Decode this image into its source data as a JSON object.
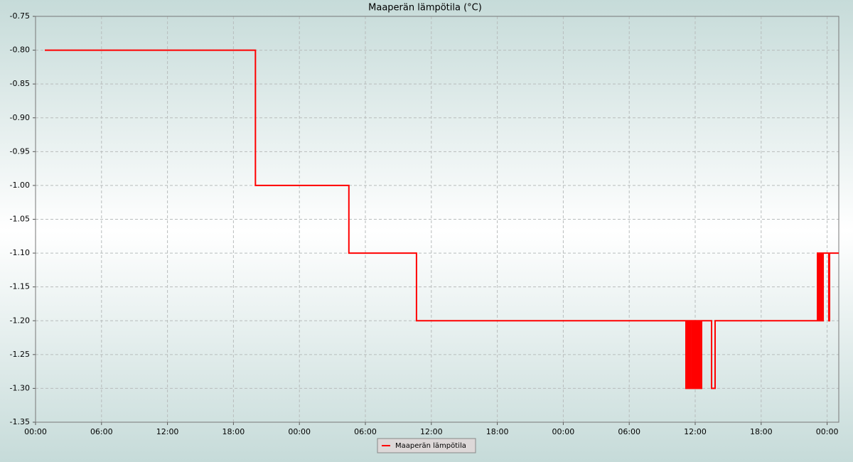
{
  "chart_data": {
    "type": "line",
    "title": "Maaperän lämpötila (°C)",
    "x": [
      0.84,
      20,
      20,
      28.5,
      28.5,
      34.65,
      34.65,
      59.16,
      59.16,
      59.29,
      59.29,
      59.42,
      59.42,
      59.55,
      59.55,
      59.68,
      59.68,
      59.81,
      59.81,
      59.94,
      59.94,
      60.07,
      60.07,
      60.19,
      60.19,
      60.32,
      60.32,
      60.45,
      60.45,
      60.58,
      60.58,
      61.49,
      61.49,
      61.81,
      61.81,
      71.12,
      71.12,
      71.25,
      71.25,
      71.38,
      71.38,
      71.51,
      71.51,
      71.64,
      71.64,
      72.15,
      72.15,
      72.22,
      72.22,
      73.06
    ],
    "series": [
      {
        "name": "Maaperän lämpötila",
        "color": "#ff0000",
        "values": [
          -0.8,
          -0.8,
          -1,
          -1,
          -1.1,
          -1.1,
          -1.2,
          -1.2,
          -1.3,
          -1.3,
          -1.2,
          -1.2,
          -1.3,
          -1.3,
          -1.2,
          -1.2,
          -1.3,
          -1.3,
          -1.2,
          -1.2,
          -1.3,
          -1.3,
          -1.2,
          -1.2,
          -1.3,
          -1.3,
          -1.2,
          -1.2,
          -1.3,
          -1.3,
          -1.2,
          -1.2,
          -1.3,
          -1.3,
          -1.2,
          -1.2,
          -1.1,
          -1.1,
          -1.2,
          -1.2,
          -1.1,
          -1.1,
          -1.2,
          -1.2,
          -1.1,
          -1.1,
          -1.2,
          -1.2,
          -1.1,
          -1.1
        ]
      }
    ],
    "xlim": [
      0,
      73.06
    ],
    "xticks": [
      {
        "value": 0,
        "label": "00:00"
      },
      {
        "value": 6,
        "label": "06:00"
      },
      {
        "value": 12,
        "label": "12:00"
      },
      {
        "value": 18,
        "label": "18:00"
      },
      {
        "value": 24,
        "label": "00:00"
      },
      {
        "value": 30,
        "label": "06:00"
      },
      {
        "value": 36,
        "label": "12:00"
      },
      {
        "value": 42,
        "label": "18:00"
      },
      {
        "value": 48,
        "label": "00:00"
      },
      {
        "value": 54,
        "label": "06:00"
      },
      {
        "value": 60,
        "label": "12:00"
      },
      {
        "value": 66,
        "label": "18:00"
      },
      {
        "value": 72,
        "label": "00:00"
      }
    ],
    "ylim": [
      -1.35,
      -0.75
    ],
    "yticks": [
      -0.75,
      {
        "value": -0.8,
        "label": "-0.80"
      },
      -0.85,
      {
        "value": -0.9,
        "label": "-0.90"
      },
      -0.95,
      {
        "value": -1,
        "label": "-1.00"
      },
      -1.05,
      {
        "value": -1.1,
        "label": "-1.10"
      },
      -1.15,
      {
        "value": -1.2,
        "label": "-1.20"
      },
      -1.25,
      {
        "value": -1.3,
        "label": "-1.30"
      },
      -1.35
    ],
    "grid": true,
    "legend": "bottom"
  }
}
